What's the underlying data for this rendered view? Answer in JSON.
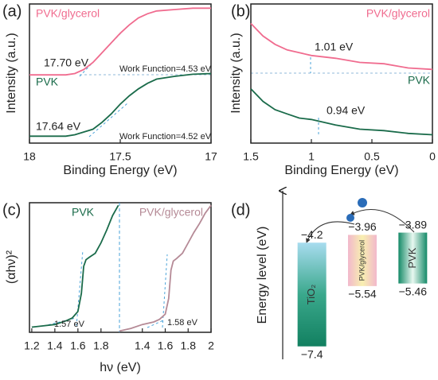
{
  "chart_data": [
    {
      "type": "line",
      "label": "(a)",
      "xlabel": "Binding Energy (eV)",
      "ylabel": "Intensity (a.u.)",
      "xlim": [
        18,
        17
      ],
      "xticks": [
        18,
        17.5,
        17
      ],
      "ylim": [
        0,
        10
      ],
      "x": [
        18,
        17.9,
        17.8,
        17.75,
        17.7,
        17.65,
        17.6,
        17.55,
        17.5,
        17.45,
        17.4,
        17.35,
        17.3,
        17.2,
        17.1,
        17.0
      ],
      "series": [
        {
          "name": "PVK/glycerol",
          "color": "#f06c8f",
          "values": [
            4.9,
            4.9,
            4.9,
            5.0,
            5.3,
            5.8,
            6.5,
            7.2,
            7.9,
            8.5,
            9.0,
            9.3,
            9.5,
            9.6,
            9.7,
            9.7
          ]
        },
        {
          "name": "PVK",
          "color": "#1a6b4a",
          "values": [
            0.5,
            0.5,
            0.5,
            0.6,
            0.8,
            1.0,
            1.5,
            2.1,
            2.8,
            3.4,
            3.9,
            4.3,
            4.6,
            4.8,
            4.95,
            5.0
          ]
        }
      ],
      "annotations": [
        "17.70 eV",
        "Work Function=4.53 eV",
        "17.64 eV",
        "Work Function=4.52 eV"
      ]
    },
    {
      "type": "line",
      "label": "(b)",
      "xlabel": "Binding Energy (eV)",
      "ylabel": "Intensity (a.u.)",
      "xlim": [
        1.5,
        0
      ],
      "xticks": [
        1.5,
        1,
        0.5,
        0
      ],
      "ylim": [
        0,
        10
      ],
      "x": [
        1.5,
        1.4,
        1.3,
        1.2,
        1.1,
        1.0,
        0.8,
        0.6,
        0.4,
        0.2,
        0
      ],
      "series": [
        {
          "name": "PVK/glycerol",
          "color": "#f06c8f",
          "values": [
            8.6,
            7.7,
            7.1,
            6.7,
            6.5,
            6.3,
            6.1,
            5.8,
            5.7,
            5.4,
            5.3
          ]
        },
        {
          "name": "PVK",
          "color": "#1a6b4a",
          "values": [
            3.9,
            3.0,
            2.4,
            2.1,
            1.8,
            1.7,
            1.3,
            1.0,
            0.9,
            0.7,
            0.6
          ]
        }
      ],
      "annotations": [
        "1.01 eV",
        "0.94 eV"
      ]
    },
    {
      "type": "line",
      "label": "(c)",
      "xlabel": "hν (eV)",
      "ylabel": "(αhν)²",
      "xlim": [
        1.18,
        1.96
      ],
      "xticks": [
        1.2,
        1.4,
        1.6,
        1.8
      ],
      "ylim": [
        0,
        10
      ],
      "x": [
        1.2,
        1.3,
        1.4,
        1.5,
        1.55,
        1.6,
        1.63,
        1.65,
        1.67,
        1.7,
        1.75,
        1.8,
        1.85,
        1.9,
        1.95
      ],
      "series": [
        {
          "name": "PVK",
          "color": "#1a6b4a",
          "values": [
            0.4,
            0.5,
            0.6,
            0.9,
            1.1,
            1.6,
            3.0,
            5.1,
            5.6,
            5.8,
            6.1,
            6.9,
            7.9,
            9.0,
            9.8
          ]
        }
      ],
      "annotations": [
        "1.57 eV"
      ]
    },
    {
      "type": "line",
      "xlim": [
        1.2,
        2.0
      ],
      "xticks": [
        1.4,
        1.6,
        1.8,
        2.0
      ],
      "ylim": [
        0,
        10
      ],
      "x": [
        1.2,
        1.3,
        1.4,
        1.5,
        1.55,
        1.6,
        1.63,
        1.65,
        1.67,
        1.7,
        1.75,
        1.8,
        1.85,
        1.9,
        1.95,
        2.0
      ],
      "series": [
        {
          "name": "PVK/glycerol",
          "color": "#b58a96",
          "values": [
            0.1,
            0.3,
            0.6,
            0.8,
            1.0,
            1.4,
            2.6,
            4.8,
            5.5,
            5.7,
            6.1,
            6.9,
            7.7,
            8.4,
            9.2,
            9.8
          ]
        }
      ],
      "annotations": [
        "1.58 eV"
      ]
    },
    {
      "type": "levels",
      "label": "(d)",
      "ylabel": "Energy level (eV)",
      "ylim": [
        -7.8,
        -2.6
      ],
      "categories": [
        "TiO₂",
        "PVK/glycerol",
        "PVK"
      ],
      "colors": [
        [
          "#a8dcef",
          "#3aa88c",
          "#128060"
        ],
        [
          "#f2b8cc",
          "#f8f0b0",
          "#f2b8cc"
        ],
        [
          "#158a68",
          "#e8f8f0",
          "#158a68"
        ]
      ],
      "series": [
        {
          "values": [
            -4.2,
            -3.96,
            -3.89
          ],
          "value_labels": [
            "−4.2",
            "−3.96",
            "−3.89"
          ]
        },
        {
          "values": [
            -7.4,
            -5.54,
            -5.46
          ],
          "value_labels": [
            "−7.4",
            "−5.54",
            "−5.46"
          ]
        }
      ]
    }
  ]
}
